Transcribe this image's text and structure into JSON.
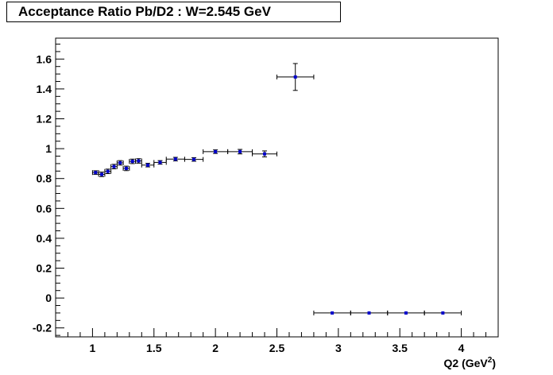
{
  "chart_data": {
    "type": "scatter",
    "title": "Acceptance Ratio Pb/D2 : W=2.545 GeV",
    "xlabel": "Q2 (GeV",
    "xlabel_sup": "2",
    "xlabel_suffix": ")",
    "ylabel": "",
    "xlim": [
      0.7,
      4.3
    ],
    "ylim": [
      -0.26,
      1.74
    ],
    "x_major_ticks": [
      1,
      1.5,
      2,
      2.5,
      3,
      3.5,
      4
    ],
    "x_tick_labels": [
      "1",
      "1.5",
      "2",
      "2.5",
      "3",
      "3.5",
      "4"
    ],
    "y_major_ticks": [
      -0.2,
      0,
      0.2,
      0.4,
      0.6,
      0.8,
      1,
      1.2,
      1.4,
      1.6
    ],
    "y_tick_labels": [
      "-0.2",
      "0",
      "0.2",
      "0.4",
      "0.6",
      "0.8",
      "1",
      "1.2",
      "1.4",
      "1.6"
    ],
    "grid": false,
    "series": [
      {
        "marker_color": "#0000cc",
        "points": [
          {
            "x": 1.025,
            "y": 0.84,
            "xerr": 0.025,
            "yerr": 0.012
          },
          {
            "x": 1.075,
            "y": 0.828,
            "xerr": 0.025,
            "yerr": 0.015
          },
          {
            "x": 1.125,
            "y": 0.848,
            "xerr": 0.025,
            "yerr": 0.015
          },
          {
            "x": 1.175,
            "y": 0.88,
            "xerr": 0.025,
            "yerr": 0.015
          },
          {
            "x": 1.225,
            "y": 0.905,
            "xerr": 0.025,
            "yerr": 0.015
          },
          {
            "x": 1.275,
            "y": 0.868,
            "xerr": 0.025,
            "yerr": 0.015
          },
          {
            "x": 1.325,
            "y": 0.915,
            "xerr": 0.025,
            "yerr": 0.015
          },
          {
            "x": 1.375,
            "y": 0.918,
            "xerr": 0.025,
            "yerr": 0.015
          },
          {
            "x": 1.45,
            "y": 0.89,
            "xerr": 0.05,
            "yerr": 0.012
          },
          {
            "x": 1.55,
            "y": 0.908,
            "xerr": 0.05,
            "yerr": 0.012
          },
          {
            "x": 1.675,
            "y": 0.93,
            "xerr": 0.075,
            "yerr": 0.012
          },
          {
            "x": 1.825,
            "y": 0.928,
            "xerr": 0.075,
            "yerr": 0.012
          },
          {
            "x": 2.0,
            "y": 0.98,
            "xerr": 0.1,
            "yerr": 0.012
          },
          {
            "x": 2.2,
            "y": 0.98,
            "xerr": 0.1,
            "yerr": 0.015
          },
          {
            "x": 2.4,
            "y": 0.965,
            "xerr": 0.1,
            "yerr": 0.02
          },
          {
            "x": 2.65,
            "y": 1.48,
            "xerr": 0.15,
            "yerr": 0.09
          },
          {
            "x": 2.95,
            "y": -0.1,
            "xerr": 0.15,
            "yerr": 0.0
          },
          {
            "x": 3.25,
            "y": -0.1,
            "xerr": 0.15,
            "yerr": 0.0
          },
          {
            "x": 3.55,
            "y": -0.1,
            "xerr": 0.15,
            "yerr": 0.0
          },
          {
            "x": 3.85,
            "y": -0.1,
            "xerr": 0.15,
            "yerr": 0.0
          }
        ]
      }
    ]
  }
}
